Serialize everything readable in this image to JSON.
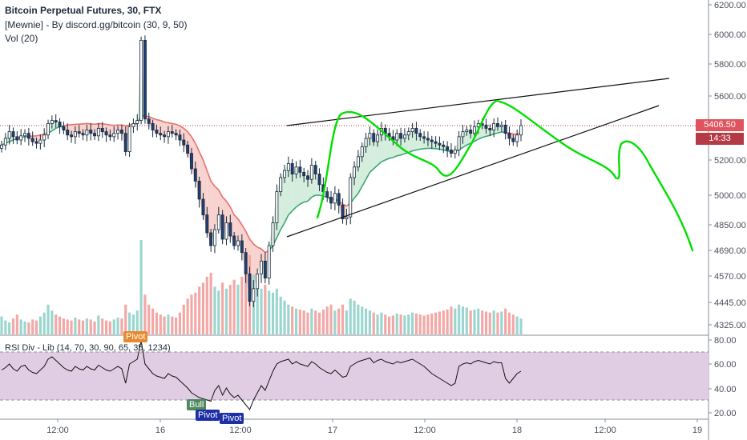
{
  "header": {
    "title": "Bitcoin Perpetual Futures, 30, FTX",
    "indicator": "[Mewnie] - By discord.gg/bitcoin (30, 9, 50)",
    "volume": "Vol (20)"
  },
  "rsi_panel": {
    "label": "RSI Div - Lib (14, 70, 30, 90, 65, 35, 1234)",
    "tags": {
      "pivot_top": "Pivot",
      "bull": "Bull",
      "pivot_bottom": "Pivot",
      "pivot_bottom2": "Pivot"
    }
  },
  "price_badge": {
    "value": "5406.50",
    "timer": "14:33"
  },
  "colors": {
    "up": "#26a69a",
    "down": "#ef5350",
    "up_volume": "#9ad6cf",
    "down_volume": "#f3a8a6",
    "cloud_bear": "#f8d2cf",
    "cloud_bull": "#d4eddc",
    "drawing": "#00e000",
    "rsi_band": "#e1cde3",
    "price_line": "#b43a46"
  },
  "chart_data": {
    "type": "candlestick",
    "x_ticks": [
      "12:00",
      "16",
      "12:00",
      "17",
      "12:00",
      "18",
      "12:00",
      "19"
    ],
    "price_axis_ticks": [
      "6200.00",
      "6000.00",
      "5800.00",
      "5600.00",
      "5200.00",
      "5000.00",
      "4850.00",
      "4690.00",
      "4570.00",
      "4445.00",
      "4325.00"
    ],
    "rsi_axis_ticks": [
      "80.00",
      "60.00",
      "40.00",
      "20.00"
    ],
    "last_price": 5406.5,
    "rsi_levels": {
      "upper": 70,
      "lower": 30
    },
    "candles_close": [
      5290,
      5330,
      5370,
      5340,
      5320,
      5345,
      5360,
      5330,
      5310,
      5300,
      5320,
      5350,
      5420,
      5440,
      5430,
      5400,
      5380,
      5350,
      5340,
      5370,
      5360,
      5350,
      5380,
      5360,
      5345,
      5390,
      5370,
      5350,
      5340,
      5360,
      5380,
      5360,
      5250,
      5400,
      5420,
      5440,
      5960,
      5450,
      5420,
      5380,
      5360,
      5350,
      5340,
      5370,
      5360,
      5350,
      5320,
      5290,
      5240,
      5150,
      5080,
      4980,
      4900,
      4800,
      4720,
      4820,
      4900,
      4760,
      4860,
      4780,
      4720,
      4750,
      4680,
      4580,
      4450,
      4510,
      4580,
      4640,
      4560,
      4720,
      4860,
      5020,
      5100,
      5140,
      5180,
      5120,
      5160,
      5130,
      5110,
      5090,
      5170,
      5120,
      5060,
      5020,
      4990,
      4960,
      5010,
      4950,
      4880,
      4890,
      5100,
      5160,
      5220,
      5280,
      5330,
      5360,
      5310,
      5350,
      5390,
      5360,
      5340,
      5320,
      5360,
      5330,
      5350,
      5370,
      5390,
      5360,
      5340,
      5330,
      5320,
      5310,
      5300,
      5290,
      5280,
      5260,
      5240,
      5260,
      5340,
      5370,
      5380,
      5360,
      5400,
      5420,
      5410,
      5390,
      5380,
      5420,
      5400,
      5410,
      5360,
      5330,
      5310,
      5350,
      5406.5
    ],
    "cloud_reference": [
      5290,
      5300,
      5310,
      5320,
      5330,
      5335,
      5340,
      5342,
      5344,
      5345,
      5350,
      5355,
      5360,
      5375,
      5390,
      5400,
      5405,
      5410,
      5412,
      5415,
      5416,
      5418,
      5420,
      5418,
      5415,
      5420,
      5418,
      5415,
      5410,
      5408,
      5410,
      5410,
      5405,
      5410,
      5415,
      5420,
      5470,
      5470,
      5465,
      5455,
      5445,
      5440,
      5430,
      5425,
      5420,
      5415,
      5405,
      5390,
      5370,
      5340,
      5300,
      5250,
      5200,
      5140,
      5080,
      5050,
      5030,
      4990,
      4970,
      4940,
      4900,
      4880,
      4850,
      4810,
      4760,
      4730,
      4710,
      4700,
      4680,
      4690,
      4720,
      4770,
      4820,
      4860,
      4900,
      4920,
      4940,
      4955,
      4965,
      4970,
      4990,
      5000,
      5000,
      4995,
      4990,
      4980,
      4980,
      4970,
      4955,
      4945,
      4960,
      4985,
      5010,
      5050,
      5090,
      5130,
      5150,
      5170,
      5190,
      5200,
      5210,
      5215,
      5225,
      5230,
      5238,
      5245,
      5255,
      5260,
      5265,
      5268,
      5270,
      5270,
      5268,
      5265,
      5260,
      5255,
      5250,
      5250,
      5262,
      5275,
      5290,
      5300,
      5312,
      5325,
      5335,
      5342,
      5348,
      5356,
      5362,
      5368,
      5366,
      5362,
      5356,
      5356,
      5360
    ],
    "volume": [
      18,
      14,
      12,
      16,
      20,
      15,
      13,
      12,
      15,
      14,
      18,
      22,
      30,
      24,
      20,
      18,
      16,
      15,
      14,
      17,
      15,
      14,
      16,
      15,
      13,
      19,
      16,
      14,
      13,
      15,
      17,
      16,
      30,
      22,
      20,
      24,
      95,
      40,
      30,
      26,
      22,
      20,
      18,
      20,
      18,
      17,
      22,
      30,
      36,
      40,
      42,
      48,
      52,
      58,
      62,
      48,
      44,
      52,
      46,
      50,
      55,
      50,
      58,
      68,
      80,
      60,
      52,
      46,
      50,
      44,
      42,
      46,
      38,
      34,
      30,
      28,
      26,
      25,
      24,
      22,
      26,
      24,
      22,
      25,
      28,
      30,
      24,
      26,
      30,
      24,
      36,
      34,
      30,
      28,
      26,
      24,
      22,
      20,
      22,
      20,
      18,
      19,
      21,
      20,
      19,
      20,
      22,
      21,
      20,
      19,
      20,
      21,
      22,
      23,
      24,
      25,
      28,
      26,
      30,
      28,
      27,
      24,
      25,
      26,
      24,
      23,
      22,
      24,
      22,
      23,
      26,
      22,
      20,
      18,
      16
    ],
    "rsi": [
      55,
      57,
      60,
      56,
      54,
      58,
      59,
      55,
      53,
      52,
      55,
      58,
      64,
      66,
      63,
      60,
      57,
      55,
      54,
      58,
      56,
      55,
      58,
      56,
      55,
      59,
      57,
      55,
      54,
      56,
      58,
      56,
      44,
      60,
      62,
      64,
      82,
      60,
      56,
      52,
      50,
      49,
      48,
      52,
      50,
      49,
      46,
      43,
      40,
      36,
      34,
      32,
      31,
      30,
      29,
      38,
      42,
      34,
      40,
      35,
      32,
      34,
      30,
      26,
      22,
      30,
      36,
      42,
      38,
      46,
      54,
      60,
      62,
      63,
      64,
      60,
      62,
      60,
      59,
      58,
      62,
      60,
      57,
      55,
      53,
      52,
      55,
      52,
      49,
      50,
      58,
      60,
      62,
      63,
      64,
      65,
      61,
      63,
      64,
      62,
      61,
      60,
      62,
      61,
      62,
      63,
      64,
      62,
      60,
      58,
      55,
      52,
      50,
      48,
      46,
      44,
      42,
      44,
      58,
      60,
      61,
      60,
      62,
      63,
      62,
      61,
      60,
      62,
      61,
      61,
      48,
      44,
      48,
      52,
      54
    ]
  }
}
